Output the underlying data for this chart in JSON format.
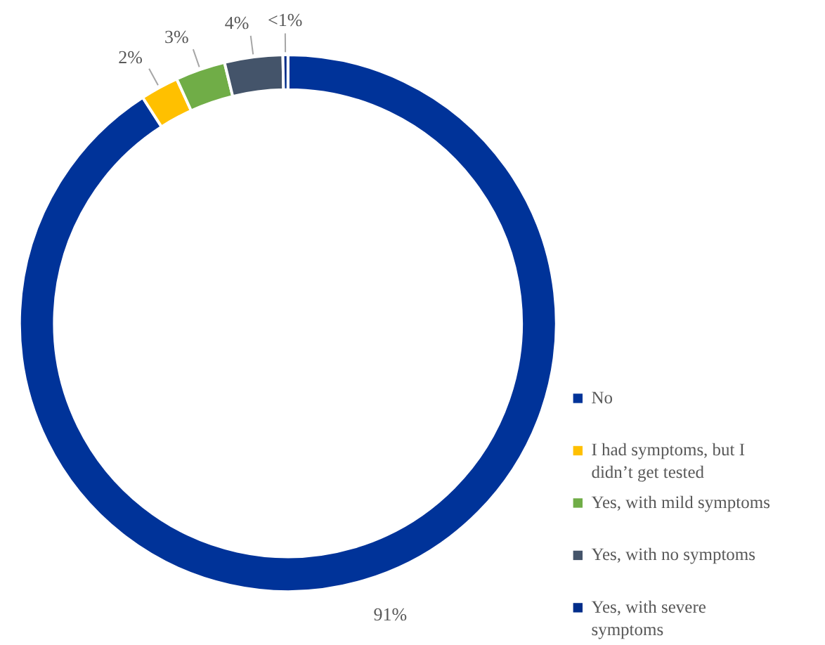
{
  "chart_data": {
    "type": "donut",
    "categories": [
      "No",
      "I had symptoms, but I didn’t get tested",
      "Yes, with mild symptoms",
      "Yes, with no symptoms",
      "Yes, with severe symptoms"
    ],
    "values": [
      90.9,
      2.3,
      3.0,
      3.5,
      0.3
    ],
    "value_labels": [
      "91%",
      "2%",
      "3%",
      "4%",
      "<1%"
    ],
    "colors": [
      "#003399",
      "#ffc000",
      "#70ad47",
      "#44546a",
      "#002d8a"
    ],
    "legend": "bottom right"
  }
}
